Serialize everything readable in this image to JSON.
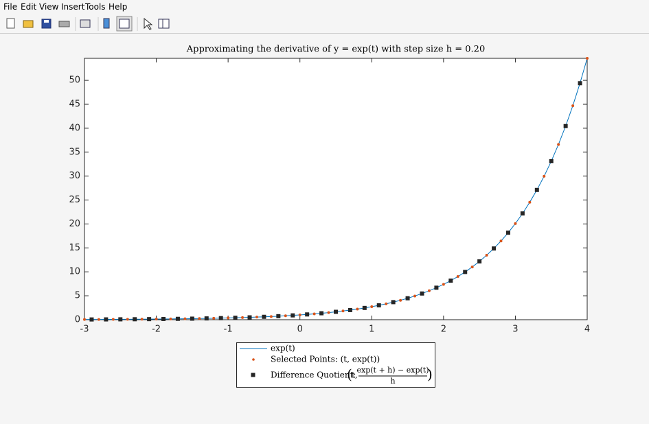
{
  "menu": [
    "File",
    "Edit",
    "View",
    "Insert",
    "Tools",
    "Help"
  ],
  "chart_data": {
    "type": "line",
    "title": "Approximating the derivative of y = exp(t) with step size h = 0.20",
    "xlim": [
      -3,
      4
    ],
    "xticks": [
      -3,
      -2,
      -1,
      0,
      1,
      2,
      3,
      4
    ],
    "ylim": [
      0,
      54.6
    ],
    "yticks": [
      0,
      5,
      10,
      15,
      20,
      25,
      30,
      35,
      40,
      45,
      50
    ],
    "grid": false,
    "legend_position": "below",
    "legend_formula": {
      "variable": "t,",
      "numerator": "exp(t + h) − exp(t)",
      "denominator": "h"
    },
    "series": [
      {
        "name": "exp(t)",
        "marker": "line",
        "color": "#0072bd",
        "x": [
          -3,
          -2.9,
          -2.8,
          -2.7,
          -2.6,
          -2.5,
          -2.4,
          -2.3,
          -2.2,
          -2.1,
          -2,
          -1.9,
          -1.8,
          -1.7,
          -1.6,
          -1.5,
          -1.4,
          -1.3,
          -1.2,
          -1.1,
          -1,
          -0.9,
          -0.8,
          -0.7,
          -0.6,
          -0.5,
          -0.4,
          -0.3,
          -0.2,
          -0.1,
          0,
          0.1,
          0.2,
          0.3,
          0.4,
          0.5,
          0.6,
          0.7,
          0.8,
          0.9,
          1,
          1.1,
          1.2,
          1.3,
          1.4,
          1.5,
          1.6,
          1.7,
          1.8,
          1.9,
          2,
          2.1,
          2.2,
          2.3,
          2.4,
          2.5,
          2.6,
          2.7,
          2.8,
          2.9,
          3,
          3.1,
          3.2,
          3.3,
          3.4,
          3.5,
          3.6,
          3.7,
          3.8,
          3.9,
          4
        ],
        "values": [
          0.0498,
          0.055,
          0.0608,
          0.0672,
          0.0743,
          0.0821,
          0.0907,
          0.1003,
          0.1108,
          0.1225,
          0.1353,
          0.1496,
          0.1653,
          0.1827,
          0.2019,
          0.2231,
          0.2466,
          0.2725,
          0.3012,
          0.3329,
          0.3679,
          0.4066,
          0.4493,
          0.4966,
          0.5488,
          0.6065,
          0.6703,
          0.7408,
          0.8187,
          0.9048,
          1,
          1.1052,
          1.2214,
          1.3499,
          1.4918,
          1.6487,
          1.8221,
          2.0138,
          2.2255,
          2.4596,
          2.7183,
          3.0042,
          3.3201,
          3.6693,
          4.0552,
          4.4817,
          4.953,
          5.4739,
          6.0496,
          6.6859,
          7.3891,
          8.1662,
          9.025,
          9.9742,
          11.0232,
          12.1825,
          13.4637,
          14.8797,
          16.4446,
          18.1741,
          20.0855,
          22.198,
          24.5325,
          27.1126,
          29.9641,
          33.1155,
          36.5982,
          40.4473,
          44.7012,
          49.4024,
          54.5982
        ]
      },
      {
        "name": "Selected Points: (t, exp(t))",
        "marker": "dot",
        "color": "#d95319",
        "x": [
          -3,
          -2.8,
          -2.6,
          -2.4,
          -2.2,
          -2,
          -1.8,
          -1.6,
          -1.4,
          -1.2,
          -1,
          -0.8,
          -0.6,
          -0.4,
          -0.2,
          0,
          0.2,
          0.4,
          0.6,
          0.8,
          1,
          1.2,
          1.4,
          1.6,
          1.8,
          2,
          2.2,
          2.4,
          2.6,
          2.8,
          3,
          3.2,
          3.4,
          3.6,
          3.8,
          4
        ],
        "values": [
          0.0498,
          0.0608,
          0.0743,
          0.0907,
          0.1108,
          0.1353,
          0.1653,
          0.2019,
          0.2466,
          0.3012,
          0.3679,
          0.4493,
          0.5488,
          0.6703,
          0.8187,
          1,
          1.2214,
          1.4918,
          1.8221,
          2.2255,
          2.7183,
          3.3201,
          4.0552,
          4.953,
          6.0496,
          7.3891,
          9.025,
          11.0232,
          13.4637,
          16.4446,
          20.0855,
          24.5325,
          29.9641,
          36.5982,
          44.7012,
          54.5982
        ]
      },
      {
        "name": "Difference Quotient:",
        "marker": "square",
        "color": "#262626",
        "x": [
          -2.9,
          -2.7,
          -2.5,
          -2.3,
          -2.1,
          -1.9,
          -1.7,
          -1.5,
          -1.3,
          -1.1,
          -0.9,
          -0.7,
          -0.5,
          -0.3,
          -0.1,
          0.1,
          0.3,
          0.5,
          0.7,
          0.9,
          1.1,
          1.3,
          1.5,
          1.7,
          1.9,
          2.1,
          2.3,
          2.5,
          2.7,
          2.9,
          3.1,
          3.3,
          3.5,
          3.7,
          3.9
        ],
        "values": [
          0.055,
          0.0672,
          0.0821,
          0.1003,
          0.1225,
          0.1496,
          0.1827,
          0.2231,
          0.2725,
          0.3329,
          0.4066,
          0.4966,
          0.6065,
          0.7408,
          0.9048,
          1.1052,
          1.3499,
          1.6487,
          2.0138,
          2.4596,
          3.0042,
          3.6693,
          4.4817,
          5.4739,
          6.6859,
          8.1662,
          9.9742,
          12.1825,
          14.8797,
          18.1741,
          22.198,
          27.1126,
          33.1155,
          40.4473,
          49.4024
        ]
      }
    ]
  }
}
